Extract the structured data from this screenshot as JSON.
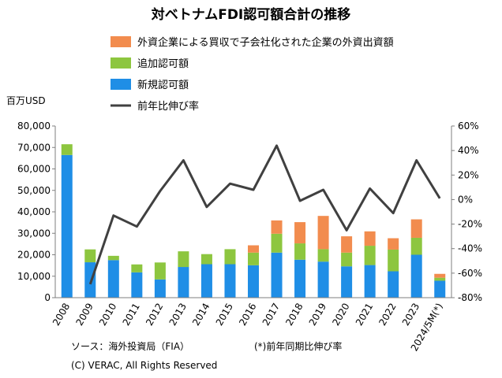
{
  "chart_data": {
    "type": "bar",
    "title": "対ベトナムFDI認可額合計の推移",
    "ylabel": "百万USD",
    "ylim": [
      0,
      80000
    ],
    "y_ticks": [
      "0",
      "10,000",
      "20,000",
      "30,000",
      "40,000",
      "50,000",
      "60,000",
      "70,000",
      "80,000"
    ],
    "y2lim": [
      -80,
      60
    ],
    "y2_ticks": [
      "-80%",
      "-60%",
      "-40%",
      "-20%",
      "0%",
      "20%",
      "40%",
      "60%"
    ],
    "grid": false,
    "stacked": true,
    "legend_position": "top",
    "categories": [
      "2008",
      "2009",
      "2010",
      "2011",
      "2012",
      "2013",
      "2014",
      "2015",
      "2016",
      "2017",
      "2018",
      "2019",
      "2020",
      "2021",
      "2022",
      "2023",
      "2024/5M(*)"
    ],
    "series": [
      {
        "name": "新規認可額",
        "type": "bar",
        "color": "#1f8ee6",
        "values": [
          66500,
          16500,
          17500,
          11800,
          8500,
          14300,
          15600,
          15600,
          15100,
          21000,
          17700,
          16800,
          14600,
          15200,
          12300,
          20000,
          7900
        ]
      },
      {
        "name": "追加認可額",
        "type": "bar",
        "color": "#8dc63f",
        "values": [
          5000,
          6000,
          2000,
          3700,
          7900,
          7300,
          4700,
          7000,
          5900,
          8800,
          7600,
          5800,
          6400,
          9000,
          10100,
          7900,
          1400
        ]
      },
      {
        "name": "外資企業による買収で子会社化された企業の外資出資額",
        "type": "bar",
        "color": "#f28c4e",
        "values": [
          0,
          0,
          0,
          0,
          0,
          0,
          0,
          0,
          3400,
          6200,
          9900,
          15500,
          7600,
          6700,
          5300,
          8600,
          1800
        ]
      },
      {
        "name": "前年比伸び率",
        "type": "line",
        "axis": "right",
        "color": "#404040",
        "values": [
          null,
          -69,
          -13,
          -22,
          7,
          32,
          -6,
          13,
          8,
          44,
          -1,
          8,
          -25,
          9,
          -11,
          32,
          1
        ]
      }
    ],
    "notes": [
      "ソース：海外投資局（FIA）",
      "(*)前年同期比伸び率",
      "(C) VERAC, All Rights Reserved"
    ]
  }
}
